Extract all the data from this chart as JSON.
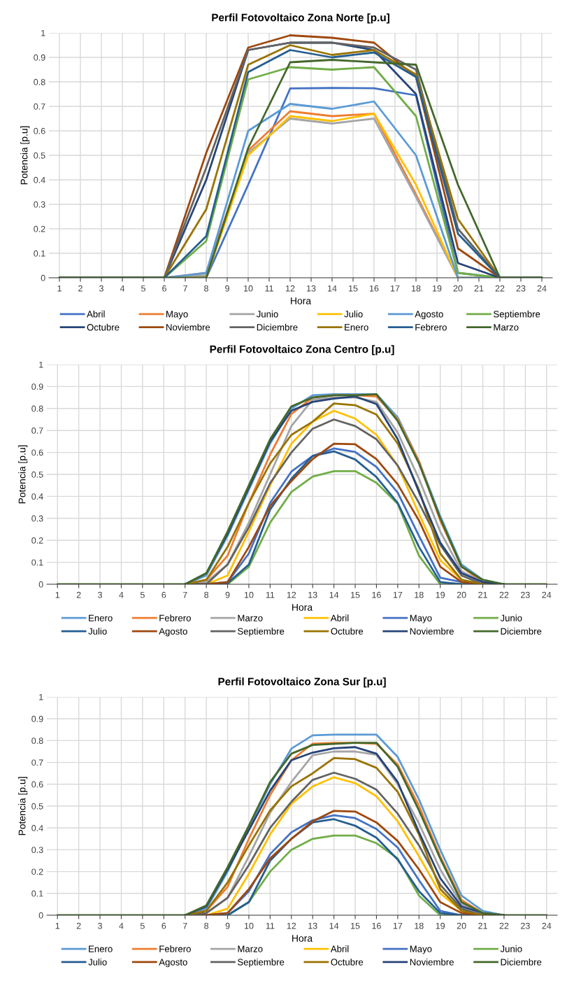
{
  "chart_data": [
    {
      "type": "line",
      "title": "Perfil Fotovoltaico Zona Norte [p.u]",
      "xlabel": "Hora",
      "ylabel": "Potencia [p.u]",
      "x": [
        1,
        6,
        8,
        10,
        12,
        14,
        16,
        18,
        20,
        22,
        24
      ],
      "xlim": [
        0.5,
        24.5
      ],
      "xticks": [
        1,
        2,
        3,
        4,
        5,
        6,
        7,
        8,
        9,
        10,
        11,
        12,
        13,
        14,
        15,
        16,
        17,
        18,
        19,
        20,
        21,
        22,
        23,
        24
      ],
      "ylim": [
        0,
        1
      ],
      "yticks": [
        0,
        0.1,
        0.2,
        0.3,
        0.4,
        0.5,
        0.6,
        0.7,
        0.8,
        0.9,
        1
      ],
      "grid": true,
      "legend": "bottom",
      "series": [
        {
          "name": "Abril",
          "color": "#4472c4",
          "values": [
            0,
            0,
            0,
            0.38,
            0.773,
            0.775,
            0.774,
            0.745,
            0.02,
            0,
            0
          ]
        },
        {
          "name": "Mayo",
          "color": "#ed7d31",
          "values": [
            0,
            0,
            0.02,
            0.52,
            0.68,
            0.66,
            0.67,
            0.34,
            0,
            0,
            0
          ]
        },
        {
          "name": "Junio",
          "color": "#a5a5a5",
          "values": [
            0,
            0,
            0.01,
            0.51,
            0.65,
            0.63,
            0.65,
            0.33,
            0,
            0,
            0
          ]
        },
        {
          "name": "Julio",
          "color": "#ffc000",
          "values": [
            0,
            0,
            0,
            0.5,
            0.66,
            0.64,
            0.67,
            0.38,
            0,
            0,
            0
          ]
        },
        {
          "name": "Agosto",
          "color": "#5b9bd5",
          "values": [
            0,
            0,
            0.02,
            0.6,
            0.71,
            0.69,
            0.72,
            0.5,
            0,
            0,
            0
          ]
        },
        {
          "name": "Septiembre",
          "color": "#70ad47",
          "values": [
            0,
            0,
            0.15,
            0.81,
            0.86,
            0.85,
            0.86,
            0.66,
            0.02,
            0,
            0
          ]
        },
        {
          "name": "Octubre",
          "color": "#264478",
          "values": [
            0,
            0,
            0.4,
            0.93,
            0.96,
            0.96,
            0.93,
            0.75,
            0.06,
            0,
            0
          ]
        },
        {
          "name": "Noviembre",
          "color": "#9e480e",
          "values": [
            0,
            0,
            0.51,
            0.94,
            0.99,
            0.98,
            0.96,
            0.82,
            0.12,
            0,
            0
          ]
        },
        {
          "name": "Diciembre",
          "color": "#636363",
          "values": [
            0,
            0,
            0.45,
            0.93,
            0.96,
            0.96,
            0.94,
            0.85,
            0.2,
            0,
            0
          ]
        },
        {
          "name": "Enero",
          "color": "#997300",
          "values": [
            0,
            0,
            0.28,
            0.87,
            0.95,
            0.91,
            0.93,
            0.83,
            0.24,
            0,
            0
          ]
        },
        {
          "name": "Febrero",
          "color": "#255e91",
          "values": [
            0,
            0,
            0.17,
            0.84,
            0.93,
            0.9,
            0.92,
            0.82,
            0.18,
            0,
            0
          ]
        },
        {
          "name": "Marzo",
          "color": "#43682b",
          "values": [
            0,
            0,
            0,
            0.53,
            0.88,
            0.89,
            0.88,
            0.87,
            0.38,
            0,
            0
          ]
        }
      ]
    },
    {
      "type": "line",
      "title": "Perfil Fotovoltaico Zona Centro [p.u]",
      "xlabel": "Hora",
      "ylabel": "Potencia [p.u]",
      "x": [
        1,
        2,
        3,
        4,
        5,
        6,
        7,
        8,
        9,
        10,
        11,
        12,
        13,
        14,
        15,
        16,
        17,
        18,
        19,
        20,
        21,
        22,
        23,
        24
      ],
      "xlim": [
        0.5,
        24.5
      ],
      "xticks": [
        1,
        2,
        3,
        4,
        5,
        6,
        7,
        8,
        9,
        10,
        11,
        12,
        13,
        14,
        15,
        16,
        17,
        18,
        19,
        20,
        21,
        22,
        23,
        24
      ],
      "ylim": [
        0,
        1
      ],
      "yticks": [
        0,
        0.1,
        0.2,
        0.3,
        0.4,
        0.5,
        0.6,
        0.7,
        0.8,
        0.9,
        1
      ],
      "grid": true,
      "legend": "bottom",
      "series": [
        {
          "name": "Enero",
          "color": "#5b9bd5",
          "values": [
            null,
            null,
            null,
            null,
            null,
            null,
            0,
            0.04,
            0.22,
            0.43,
            0.64,
            0.8,
            0.86,
            0.865,
            0.865,
            0.865,
            0.76,
            0.56,
            0.31,
            0.09,
            0.02,
            0,
            null,
            null
          ]
        },
        {
          "name": "Febrero",
          "color": "#ed7d31",
          "values": [
            null,
            null,
            null,
            null,
            null,
            null,
            0,
            0.02,
            0.13,
            0.37,
            0.59,
            0.775,
            0.85,
            0.86,
            0.86,
            0.855,
            0.75,
            0.56,
            0.29,
            0.08,
            0.01,
            0,
            null,
            null
          ]
        },
        {
          "name": "Marzo",
          "color": "#a5a5a5",
          "values": [
            null,
            null,
            null,
            null,
            null,
            null,
            0,
            0.01,
            0.09,
            0.28,
            0.5,
            0.72,
            0.84,
            0.85,
            0.85,
            0.83,
            0.69,
            0.48,
            0.24,
            0.06,
            0.01,
            0,
            null,
            null
          ]
        },
        {
          "name": "Abril",
          "color": "#ffc000",
          "values": [
            null,
            null,
            null,
            null,
            null,
            null,
            0,
            0,
            0.04,
            0.24,
            0.45,
            0.64,
            0.74,
            0.79,
            0.754,
            0.68,
            0.54,
            0.32,
            0.11,
            0.02,
            0,
            0,
            null,
            null
          ]
        },
        {
          "name": "Mayo",
          "color": "#4472c4",
          "values": [
            null,
            null,
            null,
            null,
            null,
            null,
            0,
            0,
            0.01,
            0.14,
            0.37,
            0.513,
            0.584,
            0.618,
            0.602,
            0.534,
            0.417,
            0.22,
            0.03,
            0.01,
            0,
            0,
            null,
            null
          ]
        },
        {
          "name": "Junio",
          "color": "#70ad47",
          "values": [
            null,
            null,
            null,
            null,
            null,
            null,
            0,
            0,
            0,
            0.08,
            0.28,
            0.42,
            0.49,
            0.515,
            0.515,
            0.462,
            0.366,
            0.13,
            0,
            0,
            0,
            0,
            null,
            null
          ]
        },
        {
          "name": "Julio",
          "color": "#255e91",
          "values": [
            null,
            null,
            null,
            null,
            null,
            null,
            0,
            0,
            0.005,
            0.09,
            0.34,
            0.48,
            0.584,
            0.605,
            0.568,
            0.488,
            0.37,
            0.17,
            0.01,
            0,
            0,
            0,
            null,
            null
          ]
        },
        {
          "name": "Agosto",
          "color": "#9e480e",
          "values": [
            null,
            null,
            null,
            null,
            null,
            null,
            0,
            0,
            0.01,
            0.17,
            0.356,
            0.47,
            0.57,
            0.64,
            0.637,
            0.57,
            0.455,
            0.29,
            0.08,
            0.01,
            0,
            0,
            null,
            null
          ]
        },
        {
          "name": "Septiembre",
          "color": "#636363",
          "values": [
            null,
            null,
            null,
            null,
            null,
            null,
            0,
            0,
            0.09,
            0.26,
            0.46,
            0.6,
            0.708,
            0.75,
            0.72,
            0.66,
            0.54,
            0.37,
            0.18,
            0.04,
            0,
            0,
            null,
            null
          ]
        },
        {
          "name": "Octubre",
          "color": "#997300",
          "values": [
            null,
            null,
            null,
            null,
            null,
            null,
            0,
            0.02,
            0.17,
            0.37,
            0.55,
            0.68,
            0.74,
            0.823,
            0.815,
            0.772,
            0.64,
            0.43,
            0.14,
            0.02,
            0,
            0,
            null,
            null
          ]
        },
        {
          "name": "Noviembre",
          "color": "#264478",
          "values": [
            null,
            null,
            null,
            null,
            null,
            null,
            0,
            0.05,
            0.23,
            0.44,
            0.65,
            0.79,
            0.83,
            0.845,
            0.855,
            0.82,
            0.66,
            0.42,
            0.19,
            0.05,
            0.01,
            0,
            null,
            null
          ]
        },
        {
          "name": "Diciembre",
          "color": "#43682b",
          "values": [
            0,
            0,
            0,
            0,
            0,
            0,
            0,
            0.05,
            0.24,
            0.45,
            0.66,
            0.81,
            0.85,
            0.86,
            0.86,
            0.865,
            0.743,
            0.55,
            0.3,
            0.08,
            0.02,
            0,
            0,
            0
          ]
        }
      ]
    },
    {
      "type": "line",
      "title": "Perfil Fotovoltaico Zona Sur [p.u]",
      "xlabel": "Hora",
      "ylabel": "Potencia [p.u]",
      "x": [
        1,
        2,
        3,
        4,
        5,
        6,
        7,
        8,
        9,
        10,
        11,
        12,
        13,
        14,
        15,
        16,
        17,
        18,
        19,
        20,
        21,
        22,
        23,
        24
      ],
      "xlim": [
        0.5,
        24.5
      ],
      "xticks": [
        1,
        2,
        3,
        4,
        5,
        6,
        7,
        8,
        9,
        10,
        11,
        12,
        13,
        14,
        15,
        16,
        17,
        18,
        19,
        20,
        21,
        22,
        23,
        24
      ],
      "ylim": [
        0,
        1
      ],
      "yticks": [
        0,
        0.1,
        0.2,
        0.3,
        0.4,
        0.5,
        0.6,
        0.7,
        0.8,
        0.9,
        1
      ],
      "grid": true,
      "legend": "bottom",
      "series": [
        {
          "name": "Enero",
          "color": "#5b9bd5",
          "values": [
            null,
            null,
            null,
            null,
            null,
            null,
            0,
            0.03,
            0.2,
            0.4,
            0.6,
            0.763,
            0.824,
            0.827,
            0.827,
            0.827,
            0.725,
            0.53,
            0.3,
            0.09,
            0.02,
            0,
            null,
            null
          ]
        },
        {
          "name": "Febrero",
          "color": "#ed7d31",
          "values": [
            null,
            null,
            null,
            null,
            null,
            null,
            0,
            0.02,
            0.13,
            0.35,
            0.55,
            0.71,
            0.786,
            0.79,
            0.79,
            0.785,
            0.69,
            0.5,
            0.27,
            0.07,
            0.01,
            0,
            null,
            null
          ]
        },
        {
          "name": "Marzo",
          "color": "#a5a5a5",
          "values": [
            null,
            null,
            null,
            null,
            null,
            null,
            0,
            0.01,
            0.08,
            0.27,
            0.47,
            0.61,
            0.733,
            0.75,
            0.75,
            0.735,
            0.6,
            0.42,
            0.21,
            0.05,
            0.01,
            0,
            null,
            null
          ]
        },
        {
          "name": "Abril",
          "color": "#ffc000",
          "values": [
            null,
            null,
            null,
            null,
            null,
            null,
            0,
            0,
            0.03,
            0.19,
            0.37,
            0.51,
            0.59,
            0.632,
            0.605,
            0.545,
            0.43,
            0.27,
            0.1,
            0.02,
            0,
            0,
            null,
            null
          ]
        },
        {
          "name": "Mayo",
          "color": "#4472c4",
          "values": [
            null,
            null,
            null,
            null,
            null,
            null,
            0,
            0,
            0.01,
            0.11,
            0.28,
            0.38,
            0.435,
            0.458,
            0.445,
            0.395,
            0.31,
            0.16,
            0.02,
            0,
            0,
            0,
            null,
            null
          ]
        },
        {
          "name": "Junio",
          "color": "#70ad47",
          "values": [
            null,
            null,
            null,
            null,
            null,
            null,
            0,
            0,
            0,
            0.06,
            0.2,
            0.3,
            0.35,
            0.365,
            0.365,
            0.33,
            0.26,
            0.09,
            0,
            0,
            0,
            0,
            null,
            null
          ]
        },
        {
          "name": "Julio",
          "color": "#255e91",
          "values": [
            null,
            null,
            null,
            null,
            null,
            null,
            0,
            0,
            0,
            0.06,
            0.25,
            0.35,
            0.425,
            0.44,
            0.41,
            0.355,
            0.255,
            0.11,
            0.01,
            0,
            0,
            0,
            null,
            null
          ]
        },
        {
          "name": "Agosto",
          "color": "#9e480e",
          "values": [
            null,
            null,
            null,
            null,
            null,
            null,
            0,
            0,
            0.01,
            0.12,
            0.26,
            0.35,
            0.43,
            0.478,
            0.475,
            0.425,
            0.34,
            0.21,
            0.06,
            0.01,
            0,
            0,
            null,
            null
          ]
        },
        {
          "name": "Septiembre",
          "color": "#636363",
          "values": [
            null,
            null,
            null,
            null,
            null,
            null,
            0,
            0.01,
            0.08,
            0.23,
            0.4,
            0.52,
            0.62,
            0.653,
            0.625,
            0.575,
            0.465,
            0.32,
            0.14,
            0.03,
            0,
            0,
            null,
            null
          ]
        },
        {
          "name": "Octubre",
          "color": "#997300",
          "values": [
            null,
            null,
            null,
            null,
            null,
            null,
            0,
            0.02,
            0.15,
            0.32,
            0.48,
            0.59,
            0.65,
            0.72,
            0.715,
            0.675,
            0.565,
            0.37,
            0.12,
            0.02,
            0,
            0,
            null,
            null
          ]
        },
        {
          "name": "Noviembre",
          "color": "#264478",
          "values": [
            null,
            null,
            null,
            null,
            null,
            null,
            0,
            0.04,
            0.21,
            0.39,
            0.57,
            0.71,
            0.745,
            0.765,
            0.77,
            0.74,
            0.61,
            0.38,
            0.17,
            0.04,
            0.01,
            0,
            null,
            null
          ]
        },
        {
          "name": "Diciembre",
          "color": "#43682b",
          "values": [
            0,
            0,
            0,
            0,
            0,
            0,
            0,
            0.045,
            0.22,
            0.41,
            0.61,
            0.74,
            0.78,
            0.785,
            0.79,
            0.79,
            0.68,
            0.48,
            0.26,
            0.06,
            0.01,
            0,
            0,
            0
          ]
        }
      ]
    }
  ]
}
